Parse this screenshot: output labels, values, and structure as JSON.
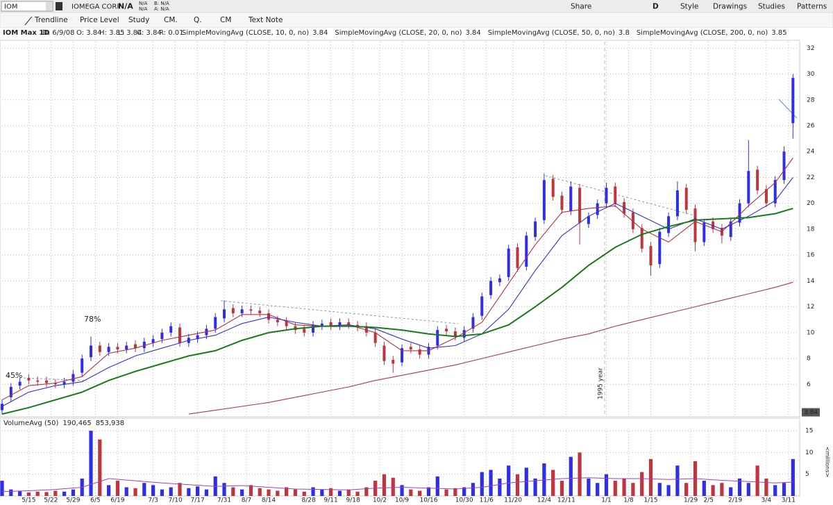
{
  "top": {
    "symbol": "IOM",
    "company": "IOMEGA CORP",
    "last": "N/A",
    "change": "N/A",
    "pct": "N/A",
    "bid": "B: N/A",
    "ask": "A: N/A",
    "right": [
      "Share",
      "D",
      "Style",
      "Drawings",
      "Studies",
      "Patterns"
    ]
  },
  "toolbar": {
    "items": [
      "Trendline",
      "Price Level",
      "Study",
      "CM.",
      "Q.",
      "CM",
      "Text Note"
    ]
  },
  "header": {
    "study": "IOM Max 1D",
    "date": "D: 6/9/08",
    "o": "O: 3.84",
    "h": "H: 3.85",
    "l": "L: 3.84",
    "c": "C: 3.84",
    "r": "R: 0.01"
  },
  "chart_data": {
    "type": "candlestick",
    "up_color": "#2e2ee6",
    "down_color": "#c0343c",
    "xlim": [
      0,
      179.2
    ],
    "xticks": [
      {
        "value": 6,
        "label": "5/15"
      },
      {
        "value": 11,
        "label": "5/22"
      },
      {
        "value": 16,
        "label": "5/29"
      },
      {
        "value": 21,
        "label": "6/5"
      },
      {
        "value": 26,
        "label": "6/19"
      },
      {
        "value": 34,
        "label": "7/3"
      },
      {
        "value": 39,
        "label": "7/10"
      },
      {
        "value": 44,
        "label": "7/17"
      },
      {
        "value": 50,
        "label": "7/31"
      },
      {
        "value": 55,
        "label": "8/7"
      },
      {
        "value": 60,
        "label": "8/14"
      },
      {
        "value": 69,
        "label": "8/28"
      },
      {
        "value": 74,
        "label": "9/11"
      },
      {
        "value": 79,
        "label": "9/18"
      },
      {
        "value": 85,
        "label": "10/2"
      },
      {
        "value": 90,
        "label": "10/9"
      },
      {
        "value": 96,
        "label": "10/16"
      },
      {
        "value": 104,
        "label": "10/30"
      },
      {
        "value": 109,
        "label": "11/6"
      },
      {
        "value": 115,
        "label": "11/20"
      },
      {
        "value": 122,
        "label": "12/4"
      },
      {
        "value": 127,
        "label": "12/11"
      },
      {
        "value": 136,
        "label": "1/1"
      },
      {
        "value": 141,
        "label": "1/8"
      },
      {
        "value": 146,
        "label": "1/15"
      },
      {
        "value": 155,
        "label": "1/29"
      },
      {
        "value": 159,
        "label": "2/5"
      },
      {
        "value": 165,
        "label": "2/19"
      },
      {
        "value": 172,
        "label": "3/4"
      },
      {
        "value": 177,
        "label": "3/11"
      }
    ],
    "ylim": [
      3.6,
      32.5
    ],
    "yticks": [
      6,
      8,
      10,
      12,
      14,
      16,
      18,
      20,
      22,
      24,
      26,
      28,
      30,
      32
    ],
    "grid": true,
    "last_price": 3.84,
    "annotations": [
      "78%",
      "45%"
    ],
    "year_line": {
      "x": 135.6,
      "label": "1995 year"
    },
    "x": [
      0,
      2,
      4,
      6,
      8,
      10,
      12,
      14,
      16,
      18,
      20,
      22,
      24,
      26,
      28,
      30,
      32,
      34,
      36,
      38,
      40,
      42,
      44,
      46,
      48,
      50,
      52,
      54,
      56,
      58,
      60,
      62,
      64,
      66,
      68,
      70,
      72,
      74,
      76,
      78,
      80,
      82,
      84,
      86,
      88,
      90,
      92,
      94,
      96,
      98,
      100,
      102,
      104,
      106,
      108,
      110,
      112,
      114,
      116,
      118,
      120,
      122,
      124,
      126,
      128,
      130,
      132,
      134,
      136,
      138,
      140,
      142,
      144,
      146,
      148,
      150,
      152,
      154,
      156,
      158,
      160,
      162,
      164,
      166,
      168,
      170,
      172,
      174,
      176,
      178
    ],
    "open": [
      4.0,
      5.0,
      5.9,
      6.5,
      6.3,
      6.3,
      6.1,
      6.0,
      6.2,
      6.9,
      8.1,
      9.0,
      8.5,
      8.9,
      8.7,
      9.1,
      8.8,
      9.2,
      9.5,
      10.0,
      10.4,
      9.2,
      9.5,
      9.8,
      10.3,
      11.1,
      11.9,
      11.5,
      11.8,
      11.7,
      11.5,
      11.0,
      10.9,
      10.5,
      10.3,
      10.0,
      10.5,
      10.8,
      10.5,
      10.8,
      10.6,
      10.5,
      10.0,
      9.0,
      7.9,
      7.7,
      8.9,
      8.7,
      8.3,
      9.0,
      10.3,
      10.1,
      9.6,
      10.3,
      11.3,
      12.9,
      13.9,
      14.3,
      16.6,
      15.1,
      17.4,
      18.7,
      21.9,
      20.6,
      19.4,
      21.2,
      18.4,
      19.1,
      20.0,
      21.3,
      20.1,
      19.3,
      18.1,
      16.7,
      15.3,
      17.7,
      19.0,
      21.2,
      19.6,
      17.0,
      18.6,
      18.1,
      17.4,
      18.5,
      20.0,
      22.6,
      21.1,
      20.0,
      21.8,
      26.2
    ],
    "high": [
      4.8,
      6.1,
      6.5,
      6.8,
      6.6,
      6.6,
      6.4,
      6.5,
      7.1,
      8.3,
      9.7,
      9.3,
      9.2,
      9.2,
      9.3,
      9.4,
      9.6,
      9.8,
      10.3,
      10.8,
      10.7,
      9.9,
      10.1,
      10.6,
      11.5,
      12.5,
      12.2,
      12.1,
      12.1,
      12.0,
      11.8,
      11.3,
      11.2,
      10.8,
      10.6,
      10.9,
      11.0,
      11.1,
      11.1,
      11.1,
      10.9,
      10.8,
      10.3,
      9.3,
      8.2,
      9.1,
      9.2,
      9.0,
      9.2,
      10.5,
      10.6,
      10.4,
      10.5,
      11.5,
      13.1,
      14.3,
      14.5,
      16.8,
      16.9,
      17.8,
      18.9,
      22.3,
      22.2,
      20.9,
      21.7,
      21.5,
      19.3,
      20.3,
      21.6,
      21.6,
      20.4,
      19.6,
      18.4,
      17.0,
      18.1,
      19.3,
      21.7,
      21.5,
      19.9,
      18.8,
      18.9,
      18.4,
      18.9,
      20.3,
      24.9,
      22.9,
      21.4,
      22.1,
      24.4,
      30.0
    ],
    "low": [
      3.7,
      4.7,
      5.6,
      6.0,
      5.9,
      5.8,
      5.7,
      5.7,
      5.9,
      6.6,
      7.8,
      8.2,
      8.2,
      8.4,
      8.4,
      8.5,
      8.5,
      8.9,
      9.2,
      9.7,
      8.9,
      8.9,
      9.2,
      9.5,
      10.0,
      10.8,
      11.2,
      11.2,
      11.4,
      11.2,
      10.7,
      10.5,
      10.2,
      9.9,
      9.7,
      9.7,
      10.2,
      10.2,
      10.2,
      10.3,
      10.1,
      9.7,
      8.9,
      7.5,
      6.9,
      7.4,
      8.4,
      8.0,
      8.0,
      8.7,
      9.8,
      9.4,
      9.3,
      10.0,
      11.0,
      12.6,
      13.6,
      14.0,
      14.7,
      14.8,
      17.1,
      18.4,
      20.2,
      19.2,
      19.1,
      16.8,
      18.1,
      18.8,
      19.7,
      19.7,
      18.9,
      17.7,
      16.2,
      14.4,
      15.0,
      17.4,
      18.7,
      19.2,
      16.3,
      16.7,
      17.7,
      16.9,
      17.1,
      18.2,
      19.7,
      20.7,
      19.7,
      19.7,
      21.5,
      25.0
    ],
    "close": [
      4.5,
      5.8,
      6.2,
      6.3,
      6.2,
      6.1,
      6.0,
      6.2,
      6.8,
      8.0,
      9.0,
      8.5,
      8.9,
      8.7,
      9.0,
      8.8,
      9.3,
      9.5,
      10.0,
      10.5,
      9.2,
      9.6,
      9.8,
      10.3,
      11.2,
      11.8,
      11.5,
      11.8,
      11.7,
      11.5,
      11.0,
      10.8,
      10.5,
      10.2,
      10.0,
      10.6,
      10.7,
      10.5,
      10.8,
      10.6,
      10.4,
      10.0,
      9.2,
      7.8,
      7.6,
      8.8,
      8.7,
      8.3,
      8.9,
      10.2,
      10.1,
      9.7,
      10.2,
      11.2,
      12.8,
      14.0,
      14.2,
      16.5,
      15.0,
      17.5,
      18.6,
      21.8,
      20.5,
      19.5,
      21.3,
      18.5,
      19.0,
      20.0,
      21.2,
      20.0,
      19.2,
      18.0,
      16.5,
      15.2,
      17.8,
      19.0,
      21.0,
      19.5,
      17.0,
      18.5,
      18.0,
      17.5,
      18.6,
      20.0,
      22.5,
      21.0,
      20.0,
      21.8,
      24.0,
      29.7
    ],
    "ma_x": [
      0,
      6,
      12,
      18,
      24,
      30,
      36,
      42,
      48,
      54,
      60,
      66,
      72,
      78,
      84,
      90,
      96,
      102,
      108,
      114,
      120,
      126,
      132,
      138,
      144,
      150,
      156,
      162,
      168,
      174,
      178
    ],
    "moving_averages": [
      {
        "name": "SimpleMovingAvg (CLOSE, 10, 0, no)",
        "last": 3.84,
        "color": "#b5303c",
        "values": [
          4.8,
          5.9,
          6.1,
          6.6,
          8.4,
          8.8,
          9.4,
          9.8,
          10.2,
          11.4,
          11.4,
          10.6,
          10.5,
          10.6,
          10.0,
          8.6,
          8.6,
          9.6,
          10.8,
          13.8,
          16.8,
          19.3,
          19.6,
          19.8,
          18.0,
          17.0,
          18.6,
          17.8,
          19.8,
          21.6,
          23.5
        ]
      },
      {
        "name": "SimpleMovingAvg (CLOSE, 20, 0, no)",
        "last": 3.84,
        "color": "#3030d8",
        "values": [
          4.3,
          5.4,
          5.9,
          6.2,
          7.3,
          8.2,
          8.8,
          9.4,
          9.8,
          10.7,
          11.2,
          10.8,
          10.5,
          10.6,
          10.3,
          9.5,
          8.8,
          9.0,
          9.9,
          11.8,
          14.8,
          17.5,
          19.0,
          20.0,
          19.0,
          18.0,
          18.8,
          18.0,
          19.0,
          20.2,
          22.0
        ]
      },
      {
        "name": "SimpleMovingAvg (CLOSE, 50, 0, no)",
        "last": 3.8,
        "color": "#197a19",
        "values": [
          3.7,
          4.2,
          4.8,
          5.4,
          6.3,
          7.0,
          7.6,
          8.2,
          8.6,
          9.4,
          10.0,
          10.3,
          10.5,
          10.5,
          10.4,
          10.2,
          9.9,
          9.7,
          9.9,
          10.6,
          12.0,
          13.5,
          15.2,
          16.6,
          17.6,
          18.2,
          18.7,
          18.8,
          18.9,
          19.2,
          19.6
        ]
      },
      {
        "name": "SimpleMovingAvg (CLOSE, 200, 0, no)",
        "last": 3.85,
        "color": "#b0306c",
        "values": [
          null,
          null,
          null,
          null,
          null,
          null,
          null,
          3.7,
          4.0,
          4.3,
          4.6,
          5.0,
          5.4,
          5.8,
          6.3,
          6.7,
          7.1,
          7.5,
          8.0,
          8.5,
          9.0,
          9.5,
          9.9,
          10.5,
          11.0,
          11.5,
          12.0,
          12.5,
          13.0,
          13.5,
          13.9
        ]
      }
    ],
    "volume": {
      "name": "VolumeAvg (50)",
      "legend": [
        "190,465",
        "853,938"
      ],
      "unit_label": "<millions>",
      "ylim": [
        0,
        15.5
      ],
      "yticks": [
        5,
        10,
        15
      ],
      "values": [
        3.5,
        1.5,
        1.2,
        0.8,
        1.0,
        0.9,
        1.2,
        1.0,
        1.5,
        4.0,
        15.0,
        13.0,
        2.5,
        3.5,
        2.0,
        1.8,
        3.0,
        2.5,
        1.5,
        2.0,
        3.0,
        1.8,
        2.2,
        1.5,
        4.5,
        3.0,
        2.0,
        1.5,
        2.5,
        1.8,
        1.5,
        1.2,
        2.0,
        1.5,
        1.0,
        2.0,
        1.5,
        1.8,
        1.2,
        1.5,
        1.0,
        2.0,
        3.5,
        5.0,
        4.2,
        2.5,
        1.5,
        1.2,
        2.0,
        4.5,
        1.5,
        1.8,
        2.0,
        3.0,
        5.5,
        6.0,
        4.0,
        7.0,
        5.0,
        6.5,
        4.0,
        7.5,
        6.0,
        3.5,
        9.0,
        10.0,
        4.0,
        3.0,
        5.0,
        3.5,
        4.0,
        3.0,
        5.5,
        8.5,
        3.0,
        2.5,
        7.0,
        3.0,
        8.0,
        3.5,
        2.5,
        3.0,
        2.0,
        4.0,
        3.0,
        7.0,
        4.0,
        2.5,
        3.0,
        8.5
      ],
      "avg": {
        "color": "#a040c0",
        "values": [
          1.0,
          1.2,
          1.5,
          2.0,
          4.0,
          3.5,
          3.0,
          2.6,
          2.2,
          2.4,
          2.0,
          1.6,
          1.5,
          1.4,
          1.8,
          2.0,
          1.8,
          1.6,
          2.0,
          3.0,
          3.5,
          4.0,
          4.2,
          4.0,
          4.0,
          3.8,
          4.0,
          3.6,
          3.3,
          3.0,
          3.2
        ]
      }
    }
  }
}
